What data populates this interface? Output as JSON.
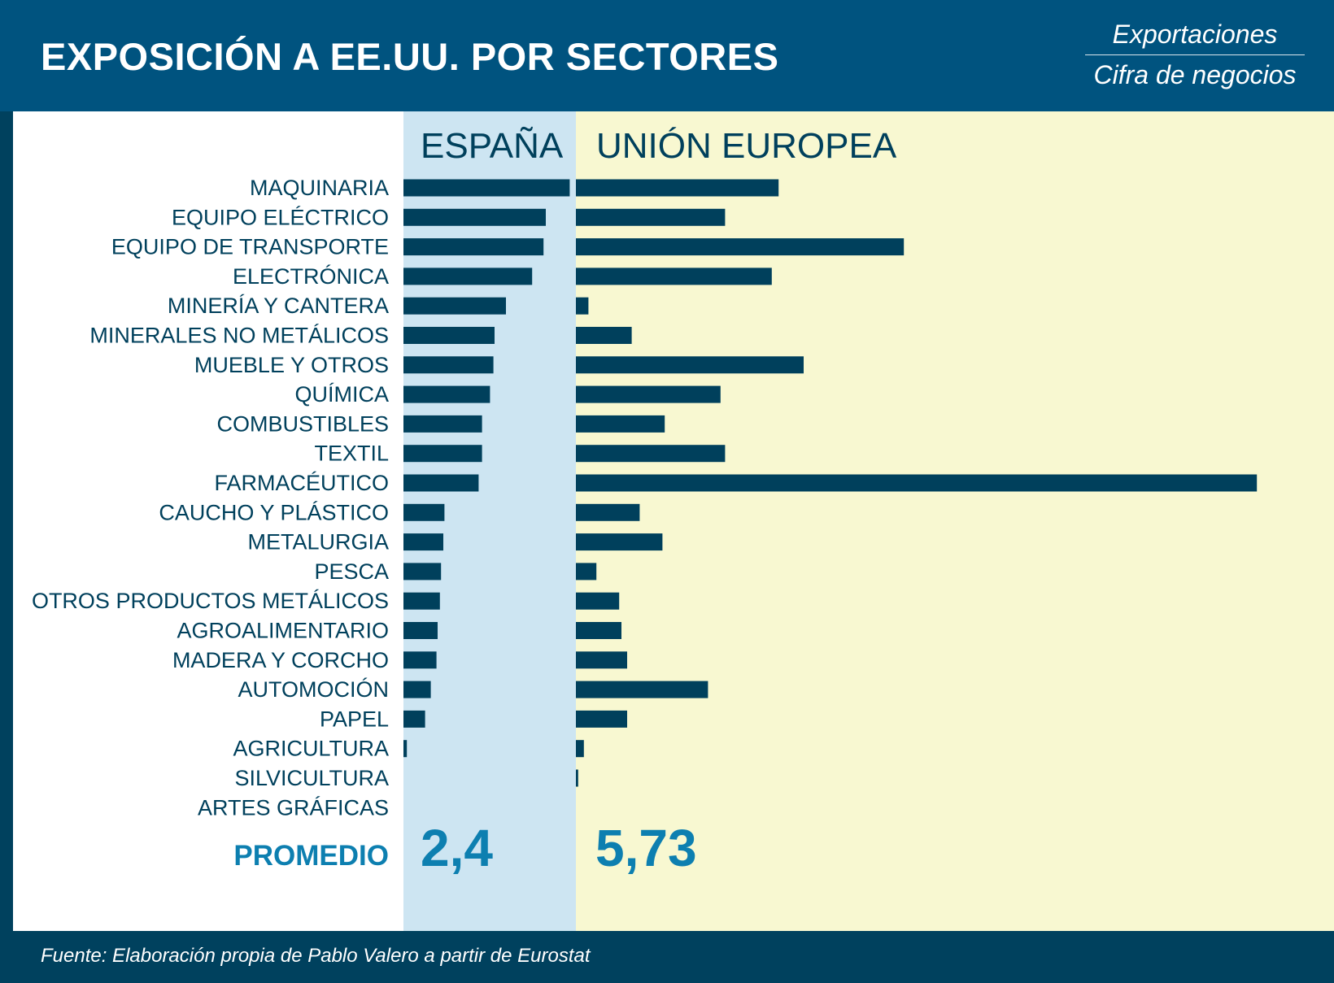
{
  "header": {
    "title": "EXPOSICIÓN A EE.UU. POR SECTORES",
    "legend_line1": "Exportaciones",
    "legend_line2": "Cifra de negocios"
  },
  "footer": {
    "source": "Fuente: Elaboración propia de Pablo Valero a partir de Eurostat"
  },
  "colors": {
    "header_bg": "#00537f",
    "frame_bg": "#00415e",
    "spain_bg": "#cde5f2",
    "eu_bg": "#f8f8d1",
    "bar": "#00405c",
    "label": "#00405c",
    "average": "#0d7fb0"
  },
  "chart_data": {
    "type": "bar",
    "orientation": "horizontal",
    "title": "EXPOSICIÓN A EE.UU. POR SECTORES",
    "subtitle": "Exportaciones / Cifra de negocios",
    "categories": [
      "MAQUINARIA",
      "EQUIPO ELÉCTRICO",
      "EQUIPO DE TRANSPORTE",
      "ELECTRÓNICA",
      "MINERÍA Y CANTERA",
      "MINERALES NO METÁLICOS",
      "MUEBLE Y OTROS",
      "QUÍMICA",
      "COMBUSTIBLES",
      "TEXTIL",
      "FARMACÉUTICO",
      "CAUCHO Y PLÁSTICO",
      "METALURGIA",
      "PESCA",
      "OTROS PRODUCTOS METÁLICOS",
      "AGROALIMENTARIO",
      "MADERA Y CORCHO",
      "AUTOMOCIÓN",
      "PAPEL",
      "AGRICULTURA",
      "SILVICULTURA",
      "ARTES GRÁFICAS"
    ],
    "series": [
      {
        "name": "ESPAÑA",
        "values": [
          7.3,
          6.25,
          6.15,
          5.65,
          4.5,
          4.0,
          3.95,
          3.8,
          3.45,
          3.45,
          3.3,
          1.8,
          1.75,
          1.65,
          1.6,
          1.5,
          1.45,
          1.2,
          0.95,
          0.15,
          0.0,
          0.0
        ]
      },
      {
        "name": "UNIÓN EUROPEA",
        "values": [
          8.9,
          6.55,
          14.4,
          8.6,
          0.55,
          2.45,
          10.0,
          6.35,
          3.9,
          6.55,
          29.9,
          2.8,
          3.8,
          0.9,
          1.9,
          2.0,
          2.25,
          5.8,
          2.25,
          0.35,
          0.1,
          0.0
        ]
      }
    ],
    "average_label": "PROMEDIO",
    "averages": [
      "2,4",
      "5,73"
    ],
    "xlim": [
      0,
      30
    ],
    "grid": false,
    "legend": "column headers"
  }
}
